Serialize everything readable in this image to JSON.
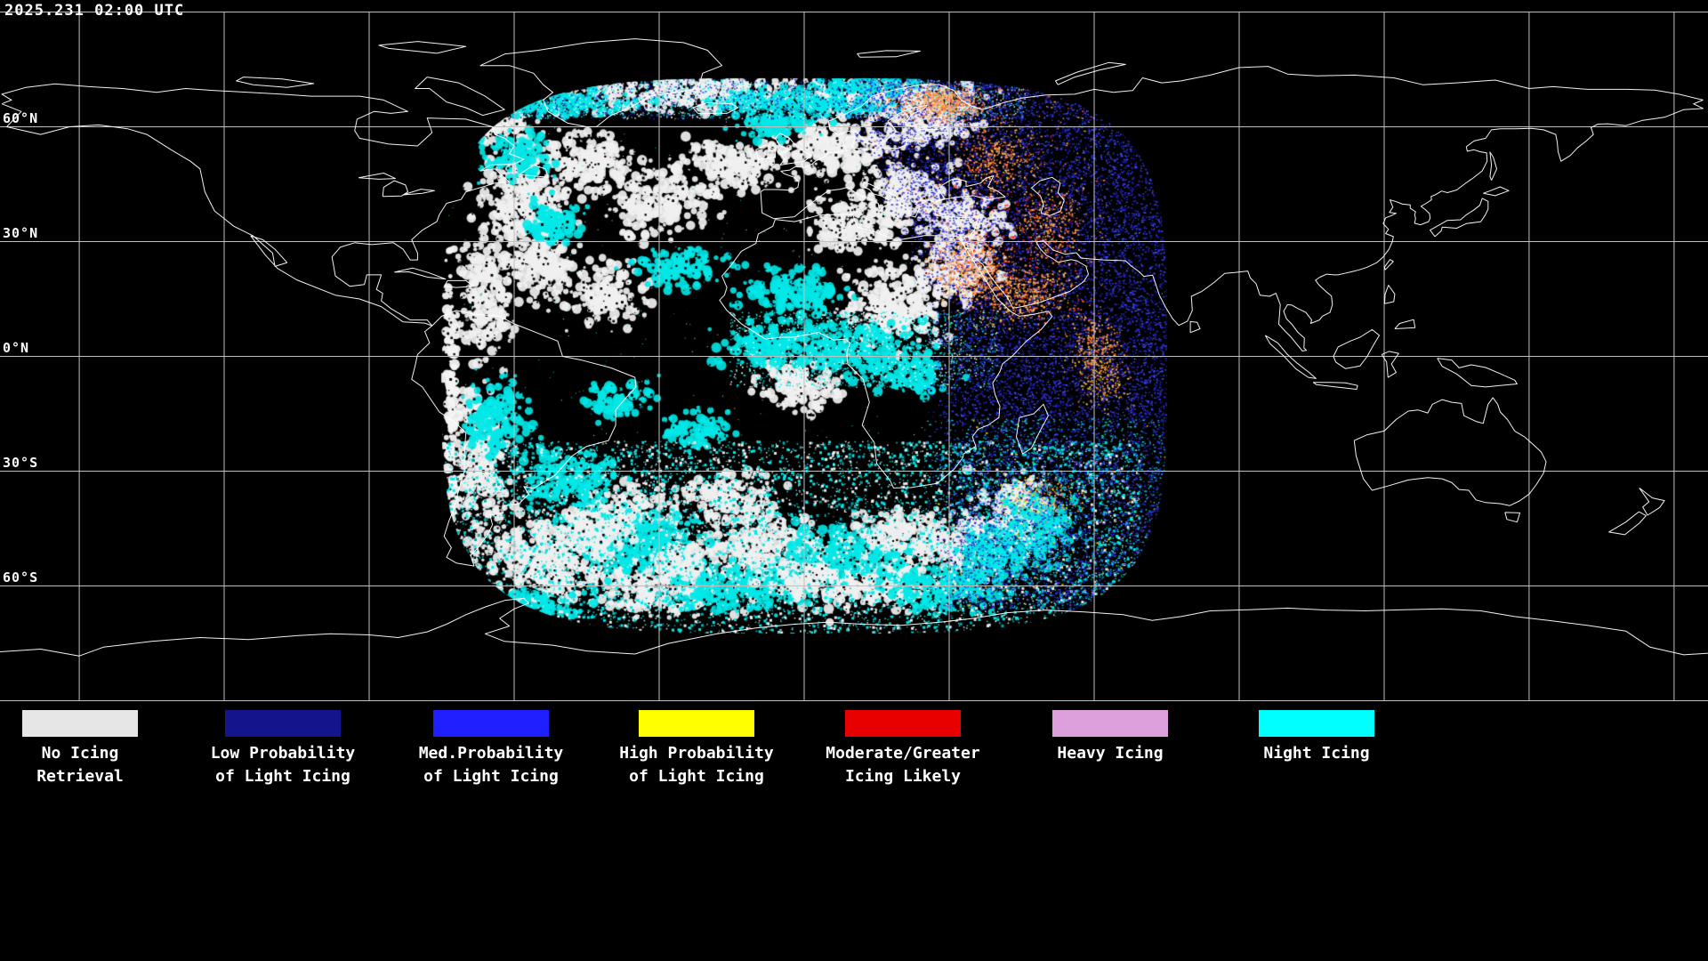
{
  "header": {
    "timestamp": "2025.231 02:00 UTC"
  },
  "map": {
    "lat_labels": [
      {
        "text": "60°N"
      },
      {
        "text": "30°N"
      },
      {
        "text": "0°N"
      },
      {
        "text": "30°S"
      },
      {
        "text": "60°S"
      }
    ]
  },
  "legend": {
    "items": [
      {
        "color": "#e6e6e6",
        "line1": "No Icing",
        "line2": "Retrieval"
      },
      {
        "color": "#14148c",
        "line1": "Low Probability",
        "line2": "of Light Icing"
      },
      {
        "color": "#1f1fff",
        "line1": "Med.Probability",
        "line2": "of Light Icing"
      },
      {
        "color": "#ffff00",
        "line1": "High Probability",
        "line2": "of Light Icing"
      },
      {
        "color": "#e80000",
        "line1": "Moderate/Greater",
        "line2": "Icing Likely"
      },
      {
        "color": "#dda0dd",
        "line1": "Heavy Icing",
        "line2": ""
      },
      {
        "color": "#00ffff",
        "line1": "Night Icing",
        "line2": ""
      }
    ]
  },
  "colors": {
    "background": "#000000",
    "grid_line": "#c0c0c0",
    "coastline": "#ffffff",
    "night_icing": "#00ffff",
    "no_retrieval": "#f0f0f0",
    "low_prob": "#2a2ad2",
    "warm_speckle": "#ff8838"
  }
}
